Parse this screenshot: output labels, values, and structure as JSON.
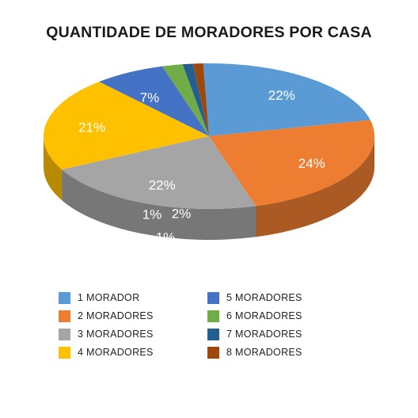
{
  "chart_data": {
    "type": "pie",
    "title": "QUANTIDADE DE MORADORES POR CASA",
    "categories": [
      "1 MORADOR",
      "2 MORADORES",
      "3 MORADORES",
      "4 MORADORES",
      "5 MORADORES",
      "6 MORADORES",
      "7 MORADORES",
      "8 MORADORES"
    ],
    "values": [
      22,
      24,
      22,
      21,
      7,
      2,
      1,
      1
    ],
    "labels": [
      "22%",
      "24%",
      "22%",
      "21%",
      "7%",
      "2%",
      "1%",
      "1%"
    ],
    "colors": [
      "#5b9bd5",
      "#ed7d31",
      "#a5a5a5",
      "#ffc000",
      "#4472c4",
      "#70ad47",
      "#255e91",
      "#9e480e"
    ],
    "legend_position": "bottom"
  }
}
